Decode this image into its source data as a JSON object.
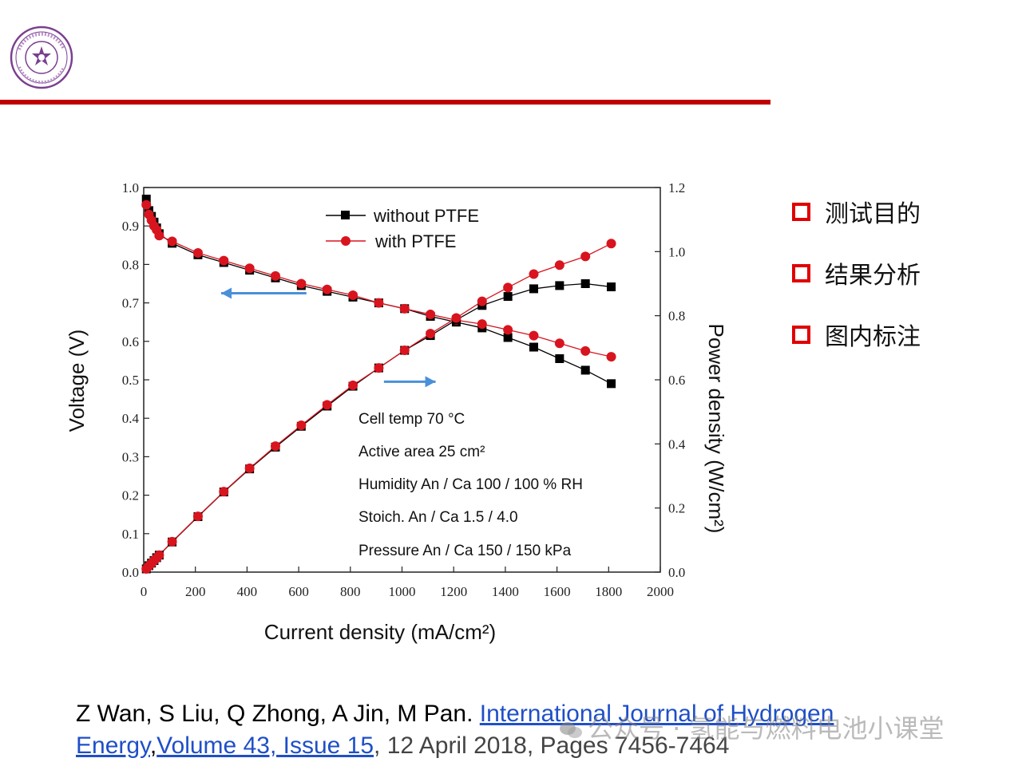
{
  "colors": {
    "accent": "#c00000",
    "series_without": "#000000",
    "series_with": "#d8141e",
    "arrow": "#4a90d9",
    "bullet": "#e00000",
    "link": "#1f4fc8"
  },
  "logo": {
    "icon": "university-seal-icon"
  },
  "bullets": [
    {
      "label": "测试目的"
    },
    {
      "label": "结果分析"
    },
    {
      "label": "图内标注"
    }
  ],
  "citation": {
    "authors": "Z Wan, S Liu, Q Zhong, A Jin, M Pan. ",
    "journal": "International Journal of Hydrogen Energy",
    "separator": ",",
    "volume": "Volume 43, Issue 15",
    "date": ", 12 April 2018, Pages 7456-7464"
  },
  "watermark": {
    "icon": "wechat-icon",
    "text": "公众号 · 氢能与燃料电池小课堂"
  },
  "chart_data": {
    "type": "line",
    "xlabel": "Current density (mA/cm²)",
    "ylabel": "Voltage (V)",
    "y2label": "Power density (W/cm²)",
    "xlim": [
      0,
      2000
    ],
    "ylim": [
      0,
      1.0
    ],
    "y2lim": [
      0,
      1.2
    ],
    "xticks": [
      "0",
      "200",
      "400",
      "600",
      "800",
      "1000",
      "1200",
      "1400",
      "1600",
      "1800",
      "2000"
    ],
    "yticks": [
      "0.0",
      "0.1",
      "0.2",
      "0.3",
      "0.4",
      "0.5",
      "0.6",
      "0.7",
      "0.8",
      "0.9",
      "1.0"
    ],
    "y2ticks": [
      "0.0",
      "0.2",
      "0.4",
      "0.6",
      "0.8",
      "1.0",
      "1.2"
    ],
    "legend_position": "top",
    "grid": false,
    "series": [
      {
        "name": "without PTFE",
        "kind": "voltage",
        "marker": "square",
        "axis": "left",
        "x": [
          10,
          20,
          30,
          40,
          50,
          60,
          110,
          210,
          310,
          410,
          510,
          610,
          710,
          810,
          910,
          1010,
          1110,
          1210,
          1310,
          1410,
          1510,
          1610,
          1710,
          1810
        ],
        "y": [
          0.97,
          0.94,
          0.925,
          0.91,
          0.895,
          0.88,
          0.855,
          0.825,
          0.805,
          0.785,
          0.765,
          0.745,
          0.73,
          0.715,
          0.7,
          0.685,
          0.665,
          0.65,
          0.635,
          0.61,
          0.585,
          0.555,
          0.525,
          0.49
        ]
      },
      {
        "name": "with PTFE",
        "kind": "voltage",
        "marker": "circle",
        "axis": "left",
        "x": [
          10,
          20,
          30,
          40,
          50,
          60,
          110,
          210,
          310,
          410,
          510,
          610,
          710,
          810,
          910,
          1010,
          1110,
          1210,
          1310,
          1410,
          1510,
          1610,
          1710,
          1810
        ],
        "y": [
          0.955,
          0.93,
          0.915,
          0.9,
          0.89,
          0.875,
          0.86,
          0.83,
          0.81,
          0.79,
          0.77,
          0.75,
          0.735,
          0.72,
          0.7,
          0.685,
          0.67,
          0.655,
          0.645,
          0.63,
          0.615,
          0.595,
          0.575,
          0.56
        ]
      },
      {
        "name": "without PTFE",
        "kind": "power",
        "marker": "square",
        "axis": "right",
        "x": [
          10,
          20,
          30,
          40,
          50,
          60,
          110,
          210,
          310,
          410,
          510,
          610,
          710,
          810,
          910,
          1010,
          1110,
          1210,
          1310,
          1410,
          1510,
          1610,
          1710,
          1810
        ],
        "y": [
          0.01,
          0.02,
          0.028,
          0.036,
          0.045,
          0.053,
          0.094,
          0.173,
          0.25,
          0.322,
          0.39,
          0.455,
          0.518,
          0.58,
          0.637,
          0.692,
          0.738,
          0.787,
          0.832,
          0.86,
          0.884,
          0.894,
          0.9,
          0.89
        ]
      },
      {
        "name": "with PTFE",
        "kind": "power",
        "marker": "circle",
        "axis": "right",
        "x": [
          10,
          20,
          30,
          40,
          50,
          60,
          110,
          210,
          310,
          410,
          510,
          610,
          710,
          810,
          910,
          1010,
          1110,
          1210,
          1310,
          1410,
          1510,
          1610,
          1710,
          1810
        ],
        "y": [
          0.01,
          0.019,
          0.027,
          0.036,
          0.044,
          0.053,
          0.095,
          0.174,
          0.251,
          0.324,
          0.393,
          0.458,
          0.522,
          0.583,
          0.637,
          0.692,
          0.744,
          0.793,
          0.845,
          0.888,
          0.93,
          0.958,
          0.985,
          1.025
        ]
      }
    ],
    "arrows": [
      {
        "direction": "left",
        "points_to": "left axis",
        "x_from": 630,
        "x_to": 300,
        "y": 0.725
      },
      {
        "direction": "right",
        "points_to": "right axis",
        "x_from": 930,
        "x_to": 1130,
        "y": 0.495
      }
    ],
    "annotations": [
      {
        "text": "Cell temp 70 °C"
      },
      {
        "text": "Active area 25 cm²"
      },
      {
        "text": "Humidity An / Ca 100 / 100 % RH"
      },
      {
        "text": "Stoich. An / Ca 1.5 / 4.0"
      },
      {
        "text": "Pressure An / Ca 150  / 150 kPa"
      }
    ]
  }
}
